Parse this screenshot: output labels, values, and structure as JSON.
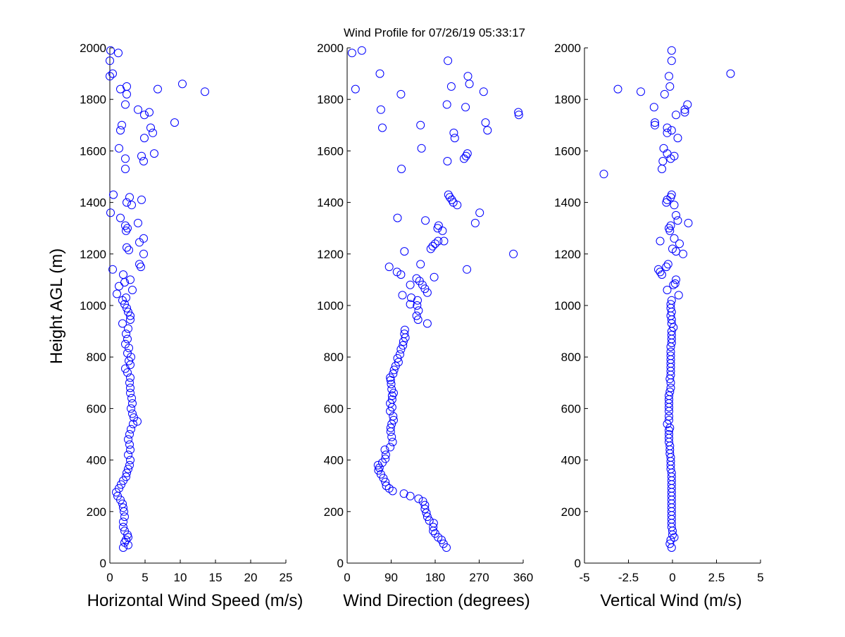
{
  "title": "Wind Profile for  07/26/19 05:33:17",
  "colors": {
    "marker": "#0000ff",
    "axis": "#000000",
    "background": "#ffffff"
  },
  "chart_data": [
    {
      "type": "scatter",
      "xlabel": "Horizontal Wind Speed (m/s)",
      "ylabel": "Height AGL (m)",
      "xlim": [
        0,
        25
      ],
      "ylim": [
        0,
        2000
      ],
      "xticks": [
        "0",
        "5",
        "10",
        "15",
        "20",
        "25"
      ],
      "yticks": [
        "0",
        "200",
        "400",
        "600",
        "800",
        "1000",
        "1200",
        "1400",
        "1600",
        "1800",
        "2000"
      ],
      "grid": false,
      "points": [
        [
          1.9,
          60
        ],
        [
          2.6,
          70
        ],
        [
          2.1,
          80
        ],
        [
          2.3,
          90
        ],
        [
          2.6,
          100
        ],
        [
          2.5,
          110
        ],
        [
          2.1,
          125
        ],
        [
          1.9,
          140
        ],
        [
          1.9,
          160
        ],
        [
          2.1,
          180
        ],
        [
          2.0,
          200
        ],
        [
          1.9,
          215
        ],
        [
          1.8,
          230
        ],
        [
          1.5,
          245
        ],
        [
          1.1,
          260
        ],
        [
          0.9,
          275
        ],
        [
          1.3,
          290
        ],
        [
          1.6,
          305
        ],
        [
          1.9,
          320
        ],
        [
          2.3,
          335
        ],
        [
          2.4,
          350
        ],
        [
          2.6,
          365
        ],
        [
          2.8,
          380
        ],
        [
          2.9,
          400
        ],
        [
          2.6,
          420
        ],
        [
          2.9,
          440
        ],
        [
          2.8,
          460
        ],
        [
          2.6,
          480
        ],
        [
          2.8,
          500
        ],
        [
          3.0,
          520
        ],
        [
          3.3,
          540
        ],
        [
          3.9,
          550
        ],
        [
          3.4,
          565
        ],
        [
          3.2,
          580
        ],
        [
          3.0,
          600
        ],
        [
          3.2,
          620
        ],
        [
          3.1,
          640
        ],
        [
          2.9,
          660
        ],
        [
          2.9,
          680
        ],
        [
          2.8,
          700
        ],
        [
          2.9,
          720
        ],
        [
          2.5,
          740
        ],
        [
          2.2,
          755
        ],
        [
          2.9,
          770
        ],
        [
          2.7,
          785
        ],
        [
          3.0,
          800
        ],
        [
          2.5,
          815
        ],
        [
          2.7,
          835
        ],
        [
          2.2,
          850
        ],
        [
          2.5,
          870
        ],
        [
          2.3,
          890
        ],
        [
          2.6,
          910
        ],
        [
          1.8,
          930
        ],
        [
          2.9,
          945
        ],
        [
          2.9,
          960
        ],
        [
          2.6,
          975
        ],
        [
          2.4,
          990
        ],
        [
          2.1,
          1005
        ],
        [
          1.8,
          1020
        ],
        [
          2.3,
          1030
        ],
        [
          1.0,
          1045
        ],
        [
          3.2,
          1060
        ],
        [
          1.3,
          1075
        ],
        [
          2.1,
          1090
        ],
        [
          2.9,
          1100
        ],
        [
          1.9,
          1120
        ],
        [
          0.4,
          1140
        ],
        [
          4.4,
          1150
        ],
        [
          4.2,
          1160
        ],
        [
          4.8,
          1200
        ],
        [
          2.7,
          1215
        ],
        [
          2.4,
          1225
        ],
        [
          4.2,
          1245
        ],
        [
          4.8,
          1260
        ],
        [
          2.3,
          1290
        ],
        [
          2.5,
          1300
        ],
        [
          2.2,
          1310
        ],
        [
          4.0,
          1320
        ],
        [
          1.5,
          1340
        ],
        [
          0.1,
          1360
        ],
        [
          3.1,
          1390
        ],
        [
          2.4,
          1400
        ],
        [
          4.5,
          1410
        ],
        [
          2.8,
          1420
        ],
        [
          0.5,
          1430
        ],
        [
          2.2,
          1530
        ],
        [
          4.8,
          1560
        ],
        [
          2.2,
          1570
        ],
        [
          4.5,
          1580
        ],
        [
          6.3,
          1590
        ],
        [
          1.3,
          1610
        ],
        [
          4.9,
          1650
        ],
        [
          6.1,
          1670
        ],
        [
          1.5,
          1680
        ],
        [
          5.8,
          1690
        ],
        [
          1.7,
          1700
        ],
        [
          9.2,
          1710
        ],
        [
          4.9,
          1740
        ],
        [
          5.6,
          1750
        ],
        [
          4.0,
          1760
        ],
        [
          2.2,
          1780
        ],
        [
          2.4,
          1820
        ],
        [
          1.5,
          1840
        ],
        [
          6.8,
          1840
        ],
        [
          13.5,
          1830
        ],
        [
          10.3,
          1860
        ],
        [
          2.4,
          1850
        ],
        [
          0.0,
          1890
        ],
        [
          0.4,
          1900
        ],
        [
          0.0,
          1950
        ],
        [
          1.2,
          1980
        ],
        [
          0.1,
          1990
        ]
      ]
    },
    {
      "type": "scatter",
      "xlabel": "Wind Direction (degrees)",
      "xlim": [
        0,
        360
      ],
      "ylim": [
        0,
        2000
      ],
      "xticks": [
        "0",
        "90",
        "180",
        "270",
        "360"
      ],
      "yticks": [
        "0",
        "200",
        "400",
        "600",
        "800",
        "1000",
        "1200",
        "1400",
        "1600",
        "1800",
        "2000"
      ],
      "grid": false,
      "points": [
        [
          203,
          60
        ],
        [
          197,
          75
        ],
        [
          193,
          90
        ],
        [
          186,
          100
        ],
        [
          180,
          115
        ],
        [
          176,
          125
        ],
        [
          176,
          140
        ],
        [
          177,
          155
        ],
        [
          168,
          165
        ],
        [
          164,
          180
        ],
        [
          162,
          195
        ],
        [
          159,
          210
        ],
        [
          159,
          225
        ],
        [
          155,
          240
        ],
        [
          146,
          250
        ],
        [
          129,
          260
        ],
        [
          116,
          270
        ],
        [
          93,
          280
        ],
        [
          86,
          290
        ],
        [
          80,
          300
        ],
        [
          78,
          315
        ],
        [
          74,
          330
        ],
        [
          69,
          345
        ],
        [
          64,
          360
        ],
        [
          66,
          370
        ],
        [
          63,
          380
        ],
        [
          72,
          390
        ],
        [
          78,
          405
        ],
        [
          79,
          420
        ],
        [
          77,
          440
        ],
        [
          88,
          450
        ],
        [
          93,
          470
        ],
        [
          91,
          490
        ],
        [
          89,
          510
        ],
        [
          89,
          525
        ],
        [
          91,
          540
        ],
        [
          95,
          555
        ],
        [
          94,
          570
        ],
        [
          88,
          590
        ],
        [
          92,
          605
        ],
        [
          88,
          620
        ],
        [
          92,
          635
        ],
        [
          92,
          650
        ],
        [
          95,
          660
        ],
        [
          91,
          675
        ],
        [
          90,
          695
        ],
        [
          89,
          710
        ],
        [
          88,
          720
        ],
        [
          94,
          735
        ],
        [
          96,
          750
        ],
        [
          99,
          765
        ],
        [
          105,
          780
        ],
        [
          103,
          795
        ],
        [
          108,
          810
        ],
        [
          110,
          830
        ],
        [
          114,
          845
        ],
        [
          115,
          860
        ],
        [
          119,
          875
        ],
        [
          117,
          890
        ],
        [
          118,
          905
        ],
        [
          164,
          930
        ],
        [
          145,
          945
        ],
        [
          142,
          960
        ],
        [
          146,
          980
        ],
        [
          143,
          1000
        ],
        [
          129,
          1005
        ],
        [
          144,
          1020
        ],
        [
          131,
          1030
        ],
        [
          113,
          1040
        ],
        [
          164,
          1050
        ],
        [
          159,
          1065
        ],
        [
          154,
          1080
        ],
        [
          129,
          1080
        ],
        [
          148,
          1095
        ],
        [
          142,
          1105
        ],
        [
          178,
          1110
        ],
        [
          110,
          1120
        ],
        [
          102,
          1130
        ],
        [
          245,
          1140
        ],
        [
          86,
          1150
        ],
        [
          150,
          1160
        ],
        [
          117,
          1210
        ],
        [
          171,
          1220
        ],
        [
          175,
          1230
        ],
        [
          180,
          1240
        ],
        [
          186,
          1250
        ],
        [
          198,
          1250
        ],
        [
          340,
          1200
        ],
        [
          195,
          1290
        ],
        [
          185,
          1300
        ],
        [
          187,
          1310
        ],
        [
          262,
          1320
        ],
        [
          160,
          1330
        ],
        [
          103,
          1340
        ],
        [
          271,
          1360
        ],
        [
          225,
          1390
        ],
        [
          217,
          1400
        ],
        [
          214,
          1410
        ],
        [
          210,
          1420
        ],
        [
          207,
          1430
        ],
        [
          111,
          1530
        ],
        [
          205,
          1560
        ],
        [
          239,
          1570
        ],
        [
          243,
          1580
        ],
        [
          246,
          1590
        ],
        [
          152,
          1610
        ],
        [
          220,
          1650
        ],
        [
          218,
          1670
        ],
        [
          72,
          1690
        ],
        [
          150,
          1700
        ],
        [
          283,
          1710
        ],
        [
          287,
          1680
        ],
        [
          351,
          1740
        ],
        [
          350,
          1750
        ],
        [
          242,
          1770
        ],
        [
          204,
          1780
        ],
        [
          110,
          1820
        ],
        [
          279,
          1830
        ],
        [
          17,
          1840
        ],
        [
          213,
          1850
        ],
        [
          250,
          1860
        ],
        [
          69,
          1760
        ],
        [
          247,
          1890
        ],
        [
          67,
          1900
        ],
        [
          206,
          1950
        ],
        [
          10,
          1980
        ],
        [
          30,
          1990
        ]
      ]
    },
    {
      "type": "scatter",
      "xlabel": "Vertical Wind (m/s)",
      "xlim": [
        -5,
        5
      ],
      "ylim": [
        0,
        2000
      ],
      "xticks": [
        "-5",
        "-2.5",
        "0",
        "2.5",
        "5"
      ],
      "yticks": [
        "0",
        "200",
        "400",
        "600",
        "800",
        "1000",
        "1200",
        "1400",
        "1600",
        "1800",
        "2000"
      ],
      "grid": false,
      "points": [
        [
          -0.05,
          60
        ],
        [
          -0.15,
          75
        ],
        [
          -0.1,
          90
        ],
        [
          0.1,
          100
        ],
        [
          0.0,
          110
        ],
        [
          0.0,
          125
        ],
        [
          -0.05,
          140
        ],
        [
          -0.05,
          155
        ],
        [
          -0.05,
          170
        ],
        [
          -0.05,
          185
        ],
        [
          -0.05,
          200
        ],
        [
          -0.05,
          215
        ],
        [
          -0.05,
          230
        ],
        [
          -0.05,
          245
        ],
        [
          -0.05,
          260
        ],
        [
          -0.05,
          275
        ],
        [
          -0.05,
          290
        ],
        [
          -0.05,
          305
        ],
        [
          -0.05,
          320
        ],
        [
          -0.05,
          335
        ],
        [
          -0.05,
          350
        ],
        [
          -0.1,
          365
        ],
        [
          -0.1,
          380
        ],
        [
          -0.1,
          395
        ],
        [
          -0.1,
          410
        ],
        [
          -0.15,
          425
        ],
        [
          -0.15,
          440
        ],
        [
          -0.15,
          455
        ],
        [
          -0.2,
          470
        ],
        [
          -0.2,
          485
        ],
        [
          -0.2,
          500
        ],
        [
          -0.2,
          515
        ],
        [
          -0.15,
          525
        ],
        [
          -0.3,
          540
        ],
        [
          -0.2,
          555
        ],
        [
          -0.2,
          570
        ],
        [
          -0.2,
          590
        ],
        [
          -0.2,
          605
        ],
        [
          -0.2,
          620
        ],
        [
          -0.2,
          635
        ],
        [
          -0.2,
          650
        ],
        [
          -0.15,
          665
        ],
        [
          -0.1,
          680
        ],
        [
          -0.1,
          700
        ],
        [
          -0.15,
          715
        ],
        [
          -0.1,
          730
        ],
        [
          -0.1,
          745
        ],
        [
          -0.1,
          760
        ],
        [
          -0.1,
          775
        ],
        [
          -0.1,
          790
        ],
        [
          -0.1,
          805
        ],
        [
          -0.1,
          820
        ],
        [
          -0.1,
          840
        ],
        [
          -0.05,
          855
        ],
        [
          -0.05,
          870
        ],
        [
          -0.05,
          885
        ],
        [
          -0.05,
          900
        ],
        [
          0.05,
          915
        ],
        [
          -0.05,
          930
        ],
        [
          -0.05,
          945
        ],
        [
          -0.1,
          960
        ],
        [
          -0.05,
          975
        ],
        [
          -0.1,
          990
        ],
        [
          -0.1,
          1005
        ],
        [
          -0.05,
          1020
        ],
        [
          0.35,
          1040
        ],
        [
          -0.3,
          1060
        ],
        [
          0.05,
          1080
        ],
        [
          0.15,
          1085
        ],
        [
          0.2,
          1100
        ],
        [
          -0.6,
          1120
        ],
        [
          -0.7,
          1130
        ],
        [
          -0.8,
          1140
        ],
        [
          -0.35,
          1150
        ],
        [
          -0.25,
          1160
        ],
        [
          0.6,
          1200
        ],
        [
          0.2,
          1210
        ],
        [
          0.0,
          1220
        ],
        [
          0.4,
          1240
        ],
        [
          -0.7,
          1250
        ],
        [
          0.1,
          1260
        ],
        [
          -0.15,
          1290
        ],
        [
          -0.2,
          1300
        ],
        [
          -0.1,
          1310
        ],
        [
          0.9,
          1320
        ],
        [
          0.3,
          1330
        ],
        [
          0.2,
          1350
        ],
        [
          0.1,
          1390
        ],
        [
          -0.35,
          1400
        ],
        [
          -0.3,
          1410
        ],
        [
          -0.1,
          1420
        ],
        [
          -0.05,
          1430
        ],
        [
          -3.9,
          1510
        ],
        [
          -0.6,
          1530
        ],
        [
          -0.55,
          1560
        ],
        [
          -0.1,
          1570
        ],
        [
          0.1,
          1580
        ],
        [
          -0.3,
          1590
        ],
        [
          -0.5,
          1610
        ],
        [
          0.3,
          1650
        ],
        [
          -0.3,
          1670
        ],
        [
          -0.05,
          1680
        ],
        [
          -0.3,
          1690
        ],
        [
          -1.0,
          1700
        ],
        [
          -1.0,
          1710
        ],
        [
          0.2,
          1740
        ],
        [
          0.7,
          1750
        ],
        [
          0.7,
          1760
        ],
        [
          -1.05,
          1770
        ],
        [
          0.85,
          1780
        ],
        [
          -0.45,
          1820
        ],
        [
          -1.8,
          1830
        ],
        [
          -3.1,
          1840
        ],
        [
          -0.15,
          1850
        ],
        [
          3.3,
          1900
        ],
        [
          -0.2,
          1890
        ],
        [
          -0.05,
          1950
        ],
        [
          -0.05,
          1990
        ]
      ]
    }
  ]
}
